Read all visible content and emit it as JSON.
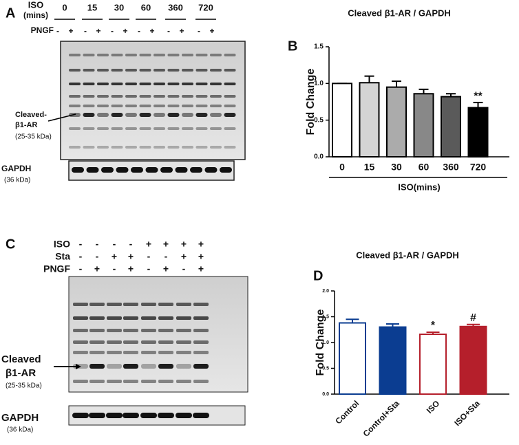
{
  "panels": {
    "a": "A",
    "b": "B",
    "c": "C",
    "d": "D"
  },
  "blot_a": {
    "iso_label": "ISO",
    "iso_unit": "(mins)",
    "times": [
      "0",
      "15",
      "30",
      "60",
      "360",
      "720"
    ],
    "pngf_label": "PNGF",
    "pngf_signs": [
      "-",
      "+",
      "-",
      "+",
      "-",
      "+",
      "-",
      "+",
      "-",
      "+",
      "-",
      "+"
    ],
    "band_label": [
      "Cleaved-",
      "β1-AR"
    ],
    "band_size": "(25-35 kDa)",
    "gapdh": "GAPDH",
    "gapdh_size": "(36 kDa)"
  },
  "blot_c": {
    "rows": [
      {
        "name": "ISO",
        "signs": [
          "-",
          "-",
          "-",
          "-",
          "+",
          "+",
          "+",
          "+"
        ]
      },
      {
        "name": "Sta",
        "signs": [
          "-",
          "-",
          "+",
          "+",
          "-",
          "-",
          "+",
          "+"
        ]
      },
      {
        "name": "PNGF",
        "signs": [
          "-",
          "+",
          "-",
          "+",
          "-",
          "+",
          "-",
          "+"
        ]
      }
    ],
    "band_label": [
      "Cleaved",
      "β1-AR"
    ],
    "band_size": "(25-35 kDa)",
    "gapdh": "GAPDH",
    "gapdh_size": "(36 kDa)"
  },
  "chart_data": [
    {
      "type": "bar",
      "title": "Cleaved β1-AR / GAPDH",
      "ylabel": "Fold Change",
      "xlabel": "ISO(mins)",
      "categories": [
        "0",
        "15",
        "30",
        "60",
        "360",
        "720"
      ],
      "values": [
        1.0,
        1.01,
        0.95,
        0.86,
        0.82,
        0.67
      ],
      "errors": [
        0,
        0.09,
        0.08,
        0.06,
        0.04,
        0.07
      ],
      "colors": [
        "#ffffff",
        "#d4d4d4",
        "#ababab",
        "#888888",
        "#5a5a5a",
        "#000000"
      ],
      "edge_colors": [
        "#000000",
        "#000000",
        "#000000",
        "#000000",
        "#000000",
        "#000000"
      ],
      "annotations": [
        null,
        null,
        null,
        null,
        null,
        "**"
      ],
      "ylim": [
        0,
        1.5
      ],
      "yticks": [
        {
          "value": 0,
          "label": "0.0"
        },
        {
          "value": 0.5,
          "label": "0.5"
        },
        {
          "value": 1,
          "label": "1.0"
        },
        {
          "value": 1.5,
          "label": "1.5"
        }
      ]
    },
    {
      "type": "bar",
      "title": "Cleaved β1-AR / GAPDH",
      "ylabel": "Fold Change",
      "categories": [
        "Control",
        "Control+Sta",
        "ISO",
        "ISO+Sta"
      ],
      "values": [
        1.38,
        1.3,
        1.16,
        1.31
      ],
      "errors": [
        0.07,
        0.06,
        0.04,
        0.04
      ],
      "colors": [
        "#ffffff",
        "#0b3d91",
        "#ffffff",
        "#b51f2b"
      ],
      "edge_colors": [
        "#0b3d91",
        "#0b3d91",
        "#b51f2b",
        "#b51f2b"
      ],
      "annotations": [
        null,
        null,
        "*",
        "#"
      ],
      "ylim": [
        0,
        2
      ],
      "yticks": [
        {
          "value": 0,
          "label": "0.0"
        },
        {
          "value": 0.5,
          "label": "0.5"
        },
        {
          "value": 1,
          "label": "1.0"
        },
        {
          "value": 1.5,
          "label": "1.5"
        },
        {
          "value": 2,
          "label": "2.0"
        }
      ]
    }
  ]
}
